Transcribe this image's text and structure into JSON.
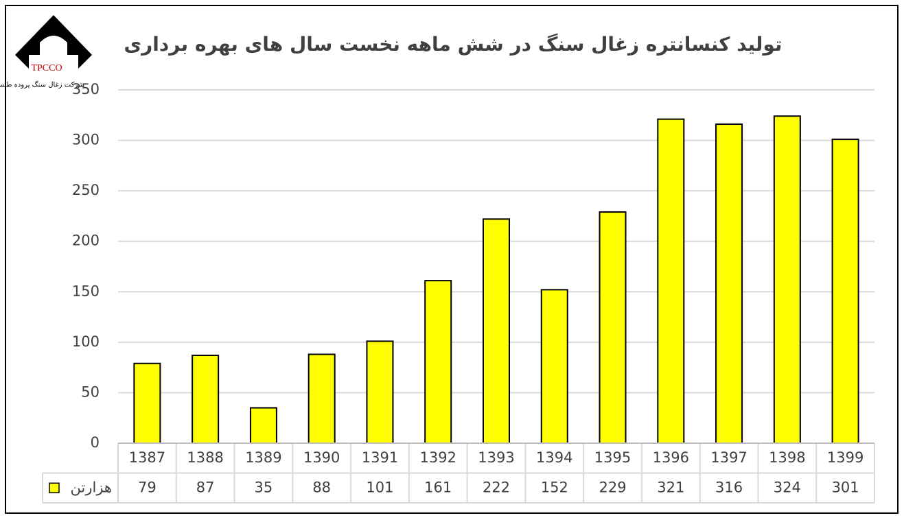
{
  "logo": {
    "name": "TPCCO",
    "caption": "شرکت زغال سنگ پروده طبس"
  },
  "chart_data": {
    "type": "bar",
    "title": "تولید کنسانتره زغال سنگ در شش ماهه نخست سال های بهره برداری",
    "categories": [
      "1387",
      "1388",
      "1389",
      "1390",
      "1391",
      "1392",
      "1393",
      "1394",
      "1395",
      "1396",
      "1397",
      "1398",
      "1399"
    ],
    "series": [
      {
        "name": "هزارتن",
        "color": "#ffff00",
        "values": [
          79,
          87,
          35,
          88,
          101,
          161,
          222,
          152,
          229,
          321,
          316,
          324,
          301
        ]
      }
    ],
    "ylim": [
      0,
      350
    ],
    "yticks": [
      0,
      50,
      100,
      150,
      200,
      250,
      300,
      350
    ],
    "grid": true,
    "data_table": true
  }
}
